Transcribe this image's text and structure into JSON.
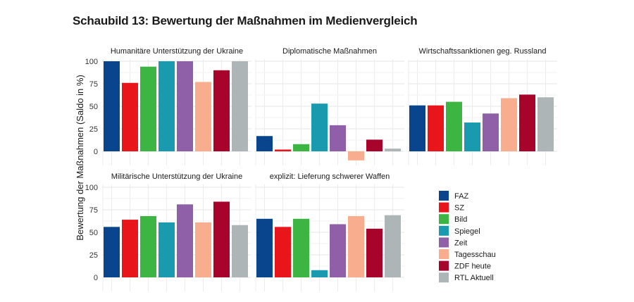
{
  "chart_data": {
    "type": "bar",
    "title": "Schaubild 13: Bewertung der Maßnahmen im Medienvergleich",
    "ylabel": "Bewertung der Maßnahmen (Saldo in %)",
    "xlabel": "",
    "ylim": [
      -12,
      105
    ],
    "yticks": [
      "0",
      "25",
      "50",
      "75",
      "100"
    ],
    "grid": true,
    "legend_position": "bottom-right",
    "series": [
      {
        "name": "FAZ",
        "color": "#08458c"
      },
      {
        "name": "SZ",
        "color": "#e8151b"
      },
      {
        "name": "Bild",
        "color": "#3db543"
      },
      {
        "name": "Spiegel",
        "color": "#1a9aae"
      },
      {
        "name": "Zeit",
        "color": "#8f5fa7"
      },
      {
        "name": "Tagesschau",
        "color": "#f8ad8e"
      },
      {
        "name": "ZDF heute",
        "color": "#a8042b"
      },
      {
        "name": "RTL Aktuell",
        "color": "#adb5b7"
      }
    ],
    "facets": [
      {
        "title": "Humanitäre Unterstützung der Ukraine",
        "values": [
          100,
          76,
          94,
          100,
          100,
          77,
          90,
          100
        ]
      },
      {
        "title": "Diplomatische Maßnahmen",
        "values": [
          17,
          2,
          8,
          53,
          29,
          -10,
          13,
          3
        ]
      },
      {
        "title": "Wirtschaftssanktionen geg. Russland",
        "values": [
          51,
          51,
          55,
          32,
          42,
          59,
          63,
          60
        ]
      },
      {
        "title": "Militärische Unterstützung der Ukraine",
        "values": [
          56,
          64,
          68,
          61,
          81,
          61,
          84,
          58
        ]
      },
      {
        "title": "explizit: Lieferung schwerer Waffen",
        "values": [
          65,
          56,
          65,
          8,
          59,
          68,
          54,
          69
        ]
      }
    ]
  }
}
